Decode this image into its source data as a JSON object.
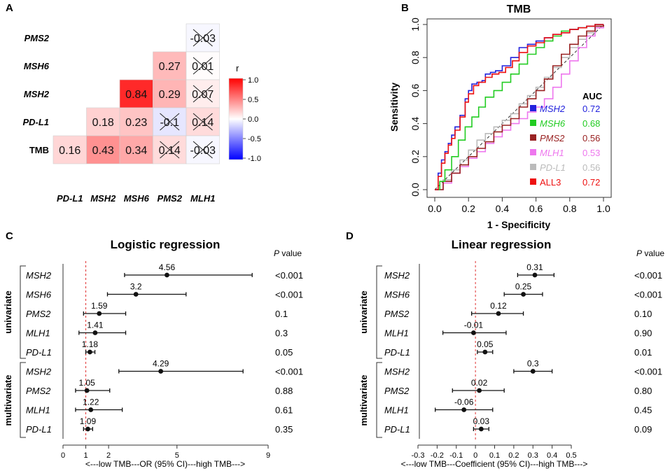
{
  "panels": {
    "a": {
      "letter": "A",
      "type": "heatmap",
      "rows": [
        "PMS2",
        "MSH6",
        "MSH2",
        "PD-L1",
        "TMB"
      ],
      "cols": [
        "PD-L1",
        "MSH2",
        "MSH6",
        "PMS2",
        "MLH1"
      ],
      "cells": [
        {
          "row": "PMS2",
          "col": "MLH1",
          "r": -0.03,
          "label": "-0.03",
          "crossed": true
        },
        {
          "row": "MSH6",
          "col": "PMS2",
          "r": 0.27,
          "label": "0.27",
          "crossed": false
        },
        {
          "row": "MSH6",
          "col": "MLH1",
          "r": 0.01,
          "label": "0.01",
          "crossed": true
        },
        {
          "row": "MSH2",
          "col": "MSH6",
          "r": 0.84,
          "label": "0.84",
          "crossed": false
        },
        {
          "row": "MSH2",
          "col": "PMS2",
          "r": 0.29,
          "label": "0.29",
          "crossed": false
        },
        {
          "row": "MSH2",
          "col": "MLH1",
          "r": 0.07,
          "label": "0.07",
          "crossed": true
        },
        {
          "row": "PD-L1",
          "col": "MSH2",
          "r": 0.18,
          "label": "0.18",
          "crossed": false
        },
        {
          "row": "PD-L1",
          "col": "MSH6",
          "r": 0.23,
          "label": "0.23",
          "crossed": false
        },
        {
          "row": "PD-L1",
          "col": "PMS2",
          "r": -0.1,
          "label": "-0.1",
          "crossed": true
        },
        {
          "row": "PD-L1",
          "col": "MLH1",
          "r": 0.14,
          "label": "0.14",
          "crossed": true
        },
        {
          "row": "TMB",
          "col": "PD-L1",
          "r": 0.16,
          "label": "0.16",
          "crossed": false
        },
        {
          "row": "TMB",
          "col": "MSH2",
          "r": 0.43,
          "label": "0.43",
          "crossed": false
        },
        {
          "row": "TMB",
          "col": "MSH6",
          "r": 0.34,
          "label": "0.34",
          "crossed": false
        },
        {
          "row": "TMB",
          "col": "PMS2",
          "r": 0.14,
          "label": "0.14",
          "crossed": true
        },
        {
          "row": "TMB",
          "col": "MLH1",
          "r": -0.03,
          "label": "-0.03",
          "crossed": true
        }
      ],
      "colorbar": {
        "title": "r",
        "ticks": [
          "1.0",
          "0.5",
          "0.0",
          "-0.5",
          "-1.0"
        ],
        "low": "#0000ff",
        "mid": "#ffffff",
        "high": "#ff0000"
      }
    },
    "b": {
      "letter": "B",
      "type": "line",
      "title": "TMB",
      "xlabel": "1 - Specificity",
      "ylabel": "Sensitivity",
      "xlim": [
        0,
        1
      ],
      "ylim": [
        0,
        1
      ],
      "ticks": [
        "0.0",
        "0.2",
        "0.4",
        "0.6",
        "0.8",
        "1.0"
      ],
      "legend_title": "AUC",
      "legend_position": "bottom-right",
      "series": [
        {
          "name": "MSH2",
          "auc": "0.72",
          "color": "#2222dd",
          "italic": true,
          "x": [
            0,
            0.02,
            0.04,
            0.06,
            0.08,
            0.1,
            0.12,
            0.15,
            0.18,
            0.2,
            0.22,
            0.25,
            0.28,
            0.3,
            0.33,
            0.36,
            0.4,
            0.45,
            0.5,
            0.55,
            0.6,
            0.65,
            0.7,
            0.75,
            0.8,
            0.85,
            0.9,
            0.95,
            1
          ],
          "y": [
            0,
            0.1,
            0.18,
            0.23,
            0.28,
            0.33,
            0.38,
            0.45,
            0.55,
            0.6,
            0.64,
            0.65,
            0.66,
            0.7,
            0.71,
            0.72,
            0.75,
            0.8,
            0.86,
            0.88,
            0.9,
            0.92,
            0.94,
            0.95,
            0.97,
            0.98,
            0.99,
            1,
            1
          ]
        },
        {
          "name": "MSH6",
          "auc": "0.68",
          "color": "#22cc22",
          "italic": true,
          "x": [
            0,
            0.03,
            0.06,
            0.1,
            0.14,
            0.18,
            0.22,
            0.26,
            0.3,
            0.35,
            0.4,
            0.45,
            0.5,
            0.55,
            0.6,
            0.65,
            0.7,
            0.75,
            0.8,
            0.85,
            0.9,
            0.95,
            1
          ],
          "y": [
            0,
            0.05,
            0.12,
            0.2,
            0.3,
            0.38,
            0.44,
            0.5,
            0.56,
            0.6,
            0.65,
            0.7,
            0.76,
            0.82,
            0.86,
            0.9,
            0.93,
            0.96,
            0.97,
            0.98,
            0.99,
            1,
            1
          ]
        },
        {
          "name": "PMS2",
          "auc": "0.56",
          "color": "#992222",
          "italic": true,
          "x": [
            0,
            0.05,
            0.1,
            0.15,
            0.2,
            0.25,
            0.3,
            0.35,
            0.4,
            0.45,
            0.5,
            0.55,
            0.6,
            0.65,
            0.7,
            0.75,
            0.8,
            0.85,
            0.9,
            0.95,
            1
          ],
          "y": [
            0,
            0.05,
            0.1,
            0.15,
            0.2,
            0.25,
            0.29,
            0.35,
            0.39,
            0.43,
            0.5,
            0.55,
            0.6,
            0.67,
            0.75,
            0.82,
            0.88,
            0.93,
            0.96,
            0.99,
            1
          ]
        },
        {
          "name": "MLH1",
          "auc": "0.53",
          "color": "#ee77ee",
          "italic": true,
          "x": [
            0,
            0.05,
            0.1,
            0.15,
            0.2,
            0.25,
            0.3,
            0.35,
            0.4,
            0.45,
            0.5,
            0.55,
            0.6,
            0.65,
            0.7,
            0.75,
            0.8,
            0.85,
            0.9,
            0.95,
            1
          ],
          "y": [
            0,
            0.04,
            0.1,
            0.14,
            0.19,
            0.23,
            0.28,
            0.32,
            0.36,
            0.4,
            0.43,
            0.47,
            0.5,
            0.55,
            0.62,
            0.7,
            0.78,
            0.86,
            0.93,
            0.98,
            1
          ]
        },
        {
          "name": "PD-L1",
          "auc": "0.56",
          "color": "#bbbbbb",
          "italic": true,
          "x": [
            0,
            0.05,
            0.1,
            0.15,
            0.2,
            0.25,
            0.3,
            0.35,
            0.4,
            0.45,
            0.5,
            0.55,
            0.6,
            0.65,
            0.7,
            0.75,
            0.8,
            0.85,
            0.9,
            0.95,
            1
          ],
          "y": [
            0,
            0.06,
            0.12,
            0.18,
            0.24,
            0.3,
            0.34,
            0.38,
            0.42,
            0.46,
            0.52,
            0.57,
            0.62,
            0.68,
            0.74,
            0.8,
            0.86,
            0.91,
            0.95,
            0.98,
            1
          ]
        },
        {
          "name": "ALL3",
          "auc": "0.72",
          "color": "#ee1111",
          "italic": false,
          "x": [
            0,
            0.02,
            0.04,
            0.06,
            0.08,
            0.1,
            0.12,
            0.15,
            0.18,
            0.2,
            0.23,
            0.26,
            0.3,
            0.34,
            0.38,
            0.42,
            0.46,
            0.5,
            0.55,
            0.6,
            0.65,
            0.7,
            0.75,
            0.8,
            0.85,
            0.9,
            0.95,
            1
          ],
          "y": [
            0,
            0.08,
            0.16,
            0.22,
            0.27,
            0.31,
            0.36,
            0.44,
            0.53,
            0.58,
            0.63,
            0.65,
            0.68,
            0.7,
            0.71,
            0.74,
            0.78,
            0.83,
            0.87,
            0.89,
            0.92,
            0.94,
            0.95,
            0.97,
            0.98,
            0.99,
            1,
            1
          ]
        }
      ]
    },
    "c": {
      "letter": "C",
      "type": "scatter",
      "title": "Logistic regression",
      "pvalue_header_italic": "P",
      "pvalue_header_rest": " value",
      "xlabel": "<---low TMB---OR (95% CI)---high TMB--->",
      "xlim": [
        0,
        9
      ],
      "ticks": [
        0,
        1,
        2,
        5,
        9
      ],
      "ref_line": 1,
      "groups": [
        "univariate",
        "multivariate"
      ],
      "rows": [
        {
          "group": "univariate",
          "name": "MSH2",
          "est": 4.56,
          "low": 2.7,
          "high": 8.3,
          "label": "4.56",
          "p": "<0.001"
        },
        {
          "group": "univariate",
          "name": "MSH6",
          "est": 3.2,
          "low": 1.95,
          "high": 5.4,
          "label": "3.2",
          "p": "<0.001"
        },
        {
          "group": "univariate",
          "name": "PMS2",
          "est": 1.59,
          "low": 0.9,
          "high": 2.75,
          "label": "1.59",
          "p": "0.1"
        },
        {
          "group": "univariate",
          "name": "MLH1",
          "est": 1.41,
          "low": 0.7,
          "high": 2.75,
          "label": "1.41",
          "p": "0.3"
        },
        {
          "group": "univariate",
          "name": "PD-L1",
          "est": 1.18,
          "low": 1.0,
          "high": 1.4,
          "label": "1.18",
          "p": "0.05"
        },
        {
          "group": "multivariate",
          "name": "MSH2",
          "est": 4.29,
          "low": 2.45,
          "high": 7.9,
          "label": "4.29",
          "p": "<0.001"
        },
        {
          "group": "multivariate",
          "name": "PMS2",
          "est": 1.05,
          "low": 0.55,
          "high": 2.05,
          "label": "1.05",
          "p": "0.88"
        },
        {
          "group": "multivariate",
          "name": "MLH1",
          "est": 1.22,
          "low": 0.55,
          "high": 2.6,
          "label": "1.22",
          "p": "0.61"
        },
        {
          "group": "multivariate",
          "name": "PD-L1",
          "est": 1.09,
          "low": 0.9,
          "high": 1.3,
          "label": "1.09",
          "p": "0.35"
        }
      ]
    },
    "d": {
      "letter": "D",
      "type": "scatter",
      "title": "Linear regression",
      "pvalue_header_italic": "P",
      "pvalue_header_rest": " value",
      "xlabel": "<---low TMB---Coefficient (95% CI)---high TMB--->",
      "xlim": [
        -0.3,
        0.5
      ],
      "ticks": [
        "-0.3",
        "-0.2",
        "-0.1",
        "0",
        "0.1",
        "0.2",
        "0.3",
        "0.4",
        "0.5"
      ],
      "ref_line": 0,
      "groups": [
        "univariate",
        "multivariate"
      ],
      "rows": [
        {
          "group": "univariate",
          "name": "MSH2",
          "est": 0.31,
          "low": 0.22,
          "high": 0.41,
          "label": "0.31",
          "p": "<0.001"
        },
        {
          "group": "univariate",
          "name": "MSH6",
          "est": 0.25,
          "low": 0.15,
          "high": 0.35,
          "label": "0.25",
          "p": "<0.001"
        },
        {
          "group": "univariate",
          "name": "PMS2",
          "est": 0.12,
          "low": -0.02,
          "high": 0.25,
          "label": "0.12",
          "p": "0.10"
        },
        {
          "group": "univariate",
          "name": "MLH1",
          "est": -0.01,
          "low": -0.17,
          "high": 0.16,
          "label": "-0.01",
          "p": "0.90"
        },
        {
          "group": "univariate",
          "name": "PD-L1",
          "est": 0.05,
          "low": 0.01,
          "high": 0.09,
          "label": "0.05",
          "p": "0.01"
        },
        {
          "group": "multivariate",
          "name": "MSH2",
          "est": 0.3,
          "low": 0.2,
          "high": 0.4,
          "label": "0.3",
          "p": "<0.001"
        },
        {
          "group": "multivariate",
          "name": "PMS2",
          "est": 0.02,
          "low": -0.12,
          "high": 0.15,
          "label": "0.02",
          "p": "0.80"
        },
        {
          "group": "multivariate",
          "name": "MLH1",
          "est": -0.06,
          "low": -0.21,
          "high": 0.09,
          "label": "-0.06",
          "p": "0.45"
        },
        {
          "group": "multivariate",
          "name": "PD-L1",
          "est": 0.03,
          "low": -0.01,
          "high": 0.07,
          "label": "0.03",
          "p": "0.09"
        }
      ]
    }
  },
  "chart_data": [
    {
      "type": "heatmap",
      "panel": "A",
      "title": "",
      "rows": [
        "PMS2",
        "MSH6",
        "MSH2",
        "PD-L1",
        "TMB"
      ],
      "cols": [
        "PD-L1",
        "MSH2",
        "MSH6",
        "PMS2",
        "MLH1"
      ],
      "legend": "r",
      "range": [
        -1,
        1
      ]
    },
    {
      "type": "line",
      "panel": "B",
      "title": "TMB",
      "xlabel": "1 - Specificity",
      "ylabel": "Sensitivity",
      "xlim": [
        0,
        1
      ],
      "ylim": [
        0,
        1
      ],
      "series_names": [
        "MSH2",
        "MSH6",
        "PMS2",
        "MLH1",
        "PD-L1",
        "ALL3"
      ],
      "auc": [
        "0.72",
        "0.68",
        "0.56",
        "0.53",
        "0.56",
        "0.72"
      ]
    },
    {
      "type": "scatter",
      "panel": "C",
      "title": "Logistic regression",
      "xlabel": "<---low TMB---OR (95% CI)---high TMB--->",
      "xlim": [
        0,
        9
      ]
    },
    {
      "type": "scatter",
      "panel": "D",
      "title": "Linear regression",
      "xlabel": "<---low TMB---Coefficient (95% CI)---high TMB--->",
      "xlim": [
        -0.3,
        0.5
      ]
    }
  ]
}
